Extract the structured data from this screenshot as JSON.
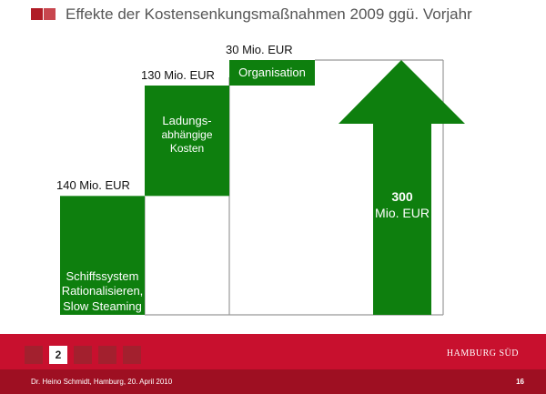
{
  "header": {
    "title": "Effekte der Kostensenkungsmaßnahmen 2009 ggü. Vorjahr"
  },
  "chart_data": {
    "type": "bar",
    "subtype": "waterfall",
    "unit": "Mio. EUR",
    "ylim": [
      0,
      300
    ],
    "steps": [
      {
        "label_lines": [
          "Schiffssystem",
          "Rationalisieren,",
          "Slow Steaming"
        ],
        "value": 140,
        "value_label": "140 Mio. EUR"
      },
      {
        "label_lines": [
          "Ladungs-",
          "abhängige",
          "Kosten"
        ],
        "value": 130,
        "value_label": "130 Mio. EUR"
      },
      {
        "label_lines": [
          "Organisation"
        ],
        "value": 30,
        "value_label": "30 Mio. EUR"
      }
    ],
    "total": {
      "value_text": "300",
      "unit_text": "Mio. EUR",
      "value": 300
    },
    "colors": {
      "bar": "#0e7f0e",
      "line": "#999999"
    }
  },
  "footer": {
    "pages": [
      "",
      "2",
      "",
      "",
      ""
    ],
    "active_page": 1,
    "logo": "HAMBURG SÜD",
    "presenter": "Dr. Heino Schmidt, Hamburg, 20. April 2010",
    "slide_number": "16"
  }
}
